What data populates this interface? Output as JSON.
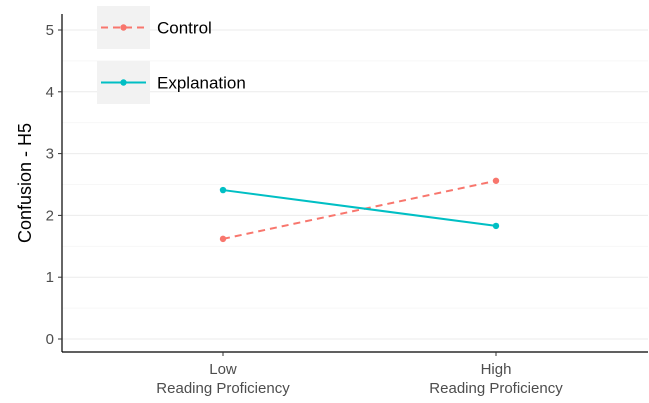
{
  "chart_data": {
    "type": "line",
    "title": "",
    "xlabel": "",
    "ylabel": "Confusion - H5",
    "categories": [
      {
        "line1": "Low",
        "line2": "Reading Proficiency"
      },
      {
        "line1": "High",
        "line2": "Reading Proficiency"
      }
    ],
    "ylim": [
      0,
      5
    ],
    "yticks": [
      0,
      1,
      2,
      3,
      4,
      5
    ],
    "grid": true,
    "legend_position": "top-left",
    "series": [
      {
        "name": "Control",
        "values": [
          1.62,
          2.56
        ],
        "color": "#F8766D",
        "linestyle": "dashed"
      },
      {
        "name": "Explanation",
        "values": [
          2.41,
          1.83
        ],
        "color": "#00BFC4",
        "linestyle": "solid"
      }
    ]
  }
}
